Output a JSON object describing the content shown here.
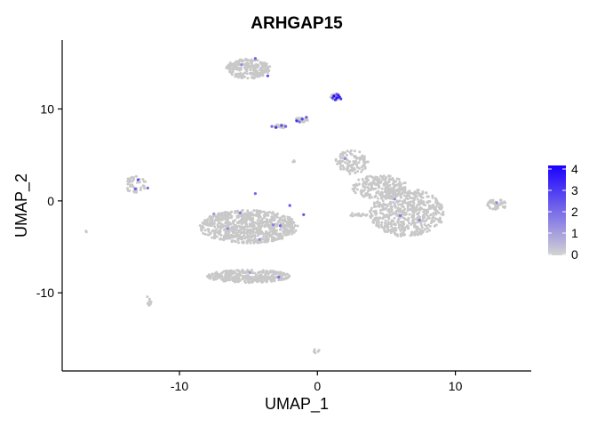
{
  "chart_data": {
    "type": "scatter",
    "title": "ARHGAP15",
    "xlabel": "UMAP_1",
    "ylabel": "UMAP_2",
    "xlim": [
      -18.5,
      15.5
    ],
    "ylim": [
      -18.5,
      17.5
    ],
    "x_ticks": [
      -10,
      0,
      10
    ],
    "y_ticks": [
      -10,
      0,
      10
    ],
    "grid": false,
    "legend": {
      "position": "right",
      "ticks": [
        0,
        1,
        2,
        3,
        4
      ],
      "low_color": "#d3d3d3",
      "high_color": "#1a00ff"
    },
    "point_color_background": "#c8c8c8",
    "clusters": [
      {
        "cx": -5.0,
        "cy": 14.4,
        "rx": 1.6,
        "ry": 1.1,
        "n": 220
      },
      {
        "cx": 1.3,
        "cy": 11.3,
        "rx": 0.35,
        "ry": 0.35,
        "n": 30
      },
      {
        "cx": -2.7,
        "cy": 8.1,
        "rx": 0.5,
        "ry": 0.2,
        "n": 25
      },
      {
        "cx": -1.2,
        "cy": 8.8,
        "rx": 0.5,
        "ry": 0.25,
        "n": 25
      },
      {
        "cx": -13.2,
        "cy": 1.8,
        "rx": 0.8,
        "ry": 0.9,
        "n": 40
      },
      {
        "cx": -5.0,
        "cy": -2.8,
        "rx": 3.6,
        "ry": 1.8,
        "n": 750
      },
      {
        "cx": -5.0,
        "cy": -8.2,
        "rx": 3.0,
        "ry": 0.7,
        "n": 320
      },
      {
        "cx": 2.5,
        "cy": 4.2,
        "rx": 1.2,
        "ry": 1.3,
        "n": 110
      },
      {
        "cx": 4.5,
        "cy": 1.5,
        "rx": 2.0,
        "ry": 1.3,
        "n": 220
      },
      {
        "cx": 6.5,
        "cy": -1.3,
        "rx": 2.7,
        "ry": 2.6,
        "n": 560
      },
      {
        "cx": 13.0,
        "cy": -0.4,
        "rx": 0.7,
        "ry": 0.6,
        "n": 45
      },
      {
        "cx": -12.2,
        "cy": -10.8,
        "rx": 0.25,
        "ry": 0.6,
        "n": 10
      },
      {
        "cx": -0.1,
        "cy": -16.3,
        "rx": 0.25,
        "ry": 0.3,
        "n": 6
      },
      {
        "cx": 3.0,
        "cy": -1.5,
        "rx": 0.8,
        "ry": 0.2,
        "n": 18
      },
      {
        "cx": -1.8,
        "cy": 4.3,
        "rx": 0.2,
        "ry": 0.2,
        "n": 4
      },
      {
        "cx": -16.7,
        "cy": -3.3,
        "rx": 0.1,
        "ry": 0.1,
        "n": 2
      }
    ],
    "expressed_points": [
      {
        "x": 1.2,
        "y": 11.4,
        "v": 4.0
      },
      {
        "x": 1.4,
        "y": 11.2,
        "v": 3.8
      },
      {
        "x": 1.6,
        "y": 11.3,
        "v": 3.5
      },
      {
        "x": 1.3,
        "y": 11.0,
        "v": 3.2
      },
      {
        "x": 1.5,
        "y": 11.5,
        "v": 3.6
      },
      {
        "x": 1.1,
        "y": 11.2,
        "v": 2.9
      },
      {
        "x": 1.7,
        "y": 11.1,
        "v": 3.0
      },
      {
        "x": 1.4,
        "y": 11.6,
        "v": 2.5
      },
      {
        "x": -3.0,
        "y": 8.0,
        "v": 3.0
      },
      {
        "x": -2.6,
        "y": 8.2,
        "v": 2.6
      },
      {
        "x": -2.3,
        "y": 8.1,
        "v": 2.2
      },
      {
        "x": -3.3,
        "y": 8.1,
        "v": 2.0
      },
      {
        "x": -1.5,
        "y": 8.7,
        "v": 3.1
      },
      {
        "x": -1.1,
        "y": 8.9,
        "v": 2.7
      },
      {
        "x": -0.8,
        "y": 9.1,
        "v": 2.4
      },
      {
        "x": -1.3,
        "y": 8.6,
        "v": 1.8
      },
      {
        "x": -13.0,
        "y": 2.3,
        "v": 2.6
      },
      {
        "x": -13.2,
        "y": 1.3,
        "v": 2.2
      },
      {
        "x": -12.3,
        "y": 1.4,
        "v": 2.0
      },
      {
        "x": -4.5,
        "y": 15.5,
        "v": 2.2
      },
      {
        "x": -3.6,
        "y": 13.6,
        "v": 2.6
      },
      {
        "x": -5.5,
        "y": 14.8,
        "v": 1.3
      },
      {
        "x": -4.5,
        "y": 0.8,
        "v": 2.0
      },
      {
        "x": -2.0,
        "y": -0.5,
        "v": 2.4
      },
      {
        "x": -1.0,
        "y": -1.5,
        "v": 2.5
      },
      {
        "x": -3.2,
        "y": -2.6,
        "v": 1.6
      },
      {
        "x": -5.6,
        "y": -1.3,
        "v": 1.8
      },
      {
        "x": -6.5,
        "y": -3.0,
        "v": 1.5
      },
      {
        "x": -7.5,
        "y": -1.4,
        "v": 1.2
      },
      {
        "x": -4.2,
        "y": -4.2,
        "v": 1.4
      },
      {
        "x": -2.7,
        "y": -2.7,
        "v": 2.1
      },
      {
        "x": -2.8,
        "y": -8.3,
        "v": 1.9
      },
      {
        "x": -4.9,
        "y": -7.8,
        "v": 1.1
      },
      {
        "x": 6.0,
        "y": -1.6,
        "v": 1.8
      },
      {
        "x": 5.6,
        "y": 0.2,
        "v": 1.4
      },
      {
        "x": 7.4,
        "y": -2.1,
        "v": 1.5
      },
      {
        "x": 2.0,
        "y": 4.6,
        "v": 1.3
      },
      {
        "x": 13.0,
        "y": -0.2,
        "v": 1.4
      }
    ]
  }
}
